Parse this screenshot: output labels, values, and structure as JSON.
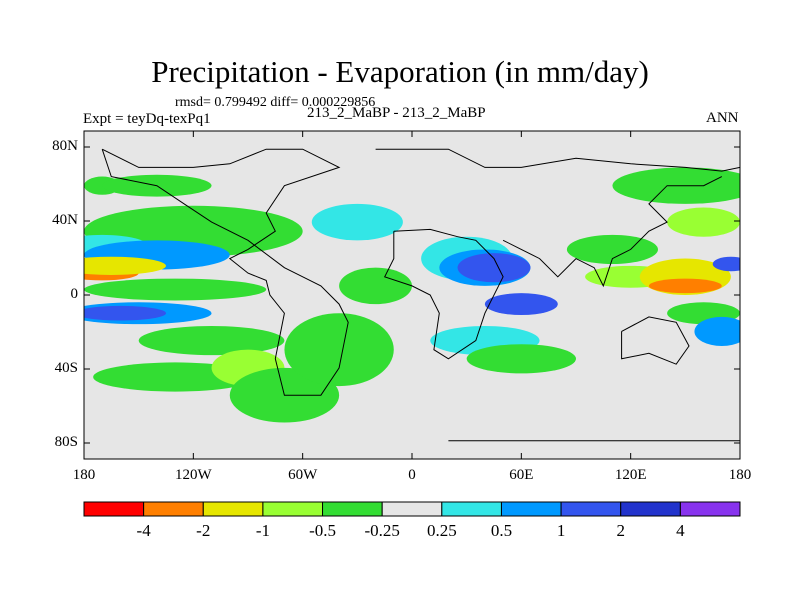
{
  "chart_data": {
    "type": "heatmap",
    "title": "Precipitation - Evaporation (in mm/day)",
    "stats": "rmsd= 0.799492  diff= 0.000229856",
    "left_label": "Expt = teyDq-texPq1",
    "center_label": "213_2_MaBP - 213_2_MaBP",
    "right_label": "ANN",
    "x_ticks": [
      "180",
      "120W",
      "60W",
      "0",
      "60E",
      "120E",
      "180"
    ],
    "y_ticks": [
      "80N",
      "40N",
      "0",
      "40S",
      "80S"
    ],
    "xlim": [
      -180,
      180
    ],
    "ylim": [
      -90,
      90
    ],
    "colorbar": {
      "levels": [
        "-4",
        "-2",
        "-1",
        "-0.5",
        "-0.25",
        "0.25",
        "0.5",
        "1",
        "2",
        "4"
      ],
      "colors": [
        "#ff0000",
        "#ff7f00",
        "#e6e600",
        "#99ff33",
        "#33dd33",
        "#e6e6e6",
        "#33e6e6",
        "#0099ff",
        "#3355ee",
        "#2233cc",
        "#8833ee"
      ]
    },
    "colors": {
      "background": "#e6e6e6",
      "dry_strong": "#ff7f00",
      "dry_mid": "#e6e600",
      "dry_light": "#99ff33",
      "dry_weak": "#33dd33",
      "wet_weak": "#33e6e6",
      "wet_light": "#0099ff",
      "wet_mid": "#3355ee",
      "wet_strong": "#2233cc"
    }
  }
}
